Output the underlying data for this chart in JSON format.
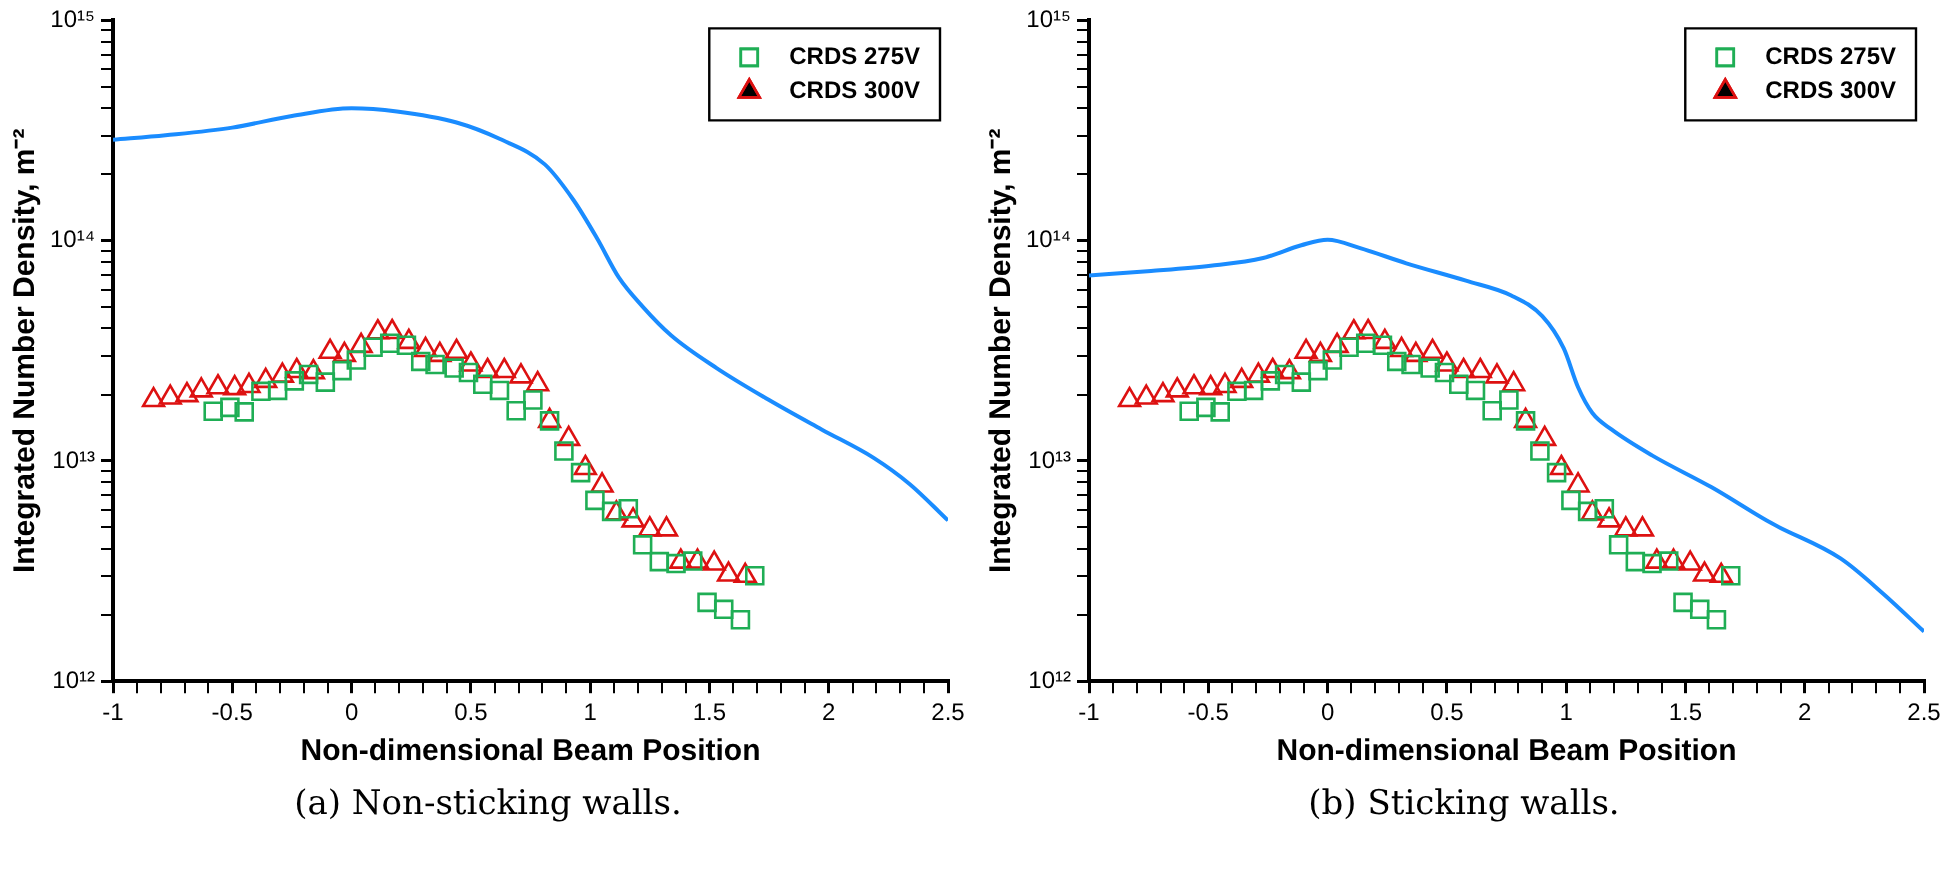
{
  "chart_data": [
    {
      "type": "scatter",
      "xlabel": "Non-dimensional Beam Position",
      "ylabel": "Integrated Number Density, m⁻²",
      "annotations": [
        "(a) Non-sticking walls."
      ],
      "log": "y",
      "legend": "top right",
      "grid": false,
      "xlim": [
        -1,
        2.5
      ],
      "ylim": [
        1000000000000.0,
        1000000000000000.0
      ],
      "xticks": [
        -1,
        {
          "value": -0.9,
          "label": null
        },
        {
          "value": -0.8,
          "label": null
        },
        {
          "value": -0.7,
          "label": null
        },
        {
          "value": -0.6,
          "label": null
        },
        -0.5,
        {
          "value": -0.4,
          "label": null
        },
        {
          "value": -0.3,
          "label": null
        },
        {
          "value": -0.2,
          "label": null
        },
        {
          "value": -0.1,
          "label": null
        },
        0,
        {
          "value": 0.1,
          "label": null
        },
        {
          "value": 0.2,
          "label": null
        },
        {
          "value": 0.3,
          "label": null
        },
        {
          "value": 0.4,
          "label": null
        },
        0.5,
        {
          "value": 0.6,
          "label": null
        },
        {
          "value": 0.7,
          "label": null
        },
        {
          "value": 0.8,
          "label": null
        },
        {
          "value": 0.9,
          "label": null
        },
        1,
        {
          "value": 1.1,
          "label": null
        },
        {
          "value": 1.2,
          "label": null
        },
        {
          "value": 1.3,
          "label": null
        },
        {
          "value": 1.4,
          "label": null
        },
        1.5,
        {
          "value": 1.6,
          "label": null
        },
        {
          "value": 1.7,
          "label": null
        },
        {
          "value": 1.8,
          "label": null
        },
        {
          "value": 1.9,
          "label": null
        },
        2,
        {
          "value": 2.1,
          "label": null
        },
        {
          "value": 2.2,
          "label": null
        },
        {
          "value": 2.3,
          "label": null
        },
        {
          "value": 2.4,
          "label": null
        },
        2.5
      ],
      "yticks": [
        {
          "value": 1000000000000.0,
          "label": "10¹²"
        },
        {
          "value": 2000000000000.0,
          "label": null
        },
        {
          "value": 3000000000000.0,
          "label": null
        },
        {
          "value": 4000000000000.0,
          "label": null
        },
        {
          "value": 5000000000000.0,
          "label": null
        },
        {
          "value": 6000000000000.0,
          "label": null
        },
        {
          "value": 7000000000000.0,
          "label": null
        },
        {
          "value": 8000000000000.0,
          "label": null
        },
        {
          "value": 9000000000000.0,
          "label": null
        },
        {
          "value": 10000000000000.0,
          "label": "10¹³"
        },
        {
          "value": 20000000000000.0,
          "label": null
        },
        {
          "value": 30000000000000.0,
          "label": null
        },
        {
          "value": 40000000000000.0,
          "label": null
        },
        {
          "value": 50000000000000.0,
          "label": null
        },
        {
          "value": 60000000000000.0,
          "label": null
        },
        {
          "value": 70000000000000.0,
          "label": null
        },
        {
          "value": 80000000000000.0,
          "label": null
        },
        {
          "value": 90000000000000.0,
          "label": null
        },
        {
          "value": 100000000000000.0,
          "label": "10¹⁴"
        },
        {
          "value": 200000000000000.0,
          "label": null
        },
        {
          "value": 300000000000000.0,
          "label": null
        },
        {
          "value": 400000000000000.0,
          "label": null
        },
        {
          "value": 500000000000000.0,
          "label": null
        },
        {
          "value": 600000000000000.0,
          "label": null
        },
        {
          "value": 700000000000000.0,
          "label": null
        },
        {
          "value": 800000000000000.0,
          "label": null
        },
        {
          "value": 900000000000000.0,
          "label": null
        },
        {
          "value": 1000000000000000.0,
          "label": "10¹⁵"
        }
      ],
      "series": [
        {
          "type": "line",
          "color": "#1a8cff",
          "marker": "none",
          "line_style": "solid",
          "x": [
            -1,
            -0.78,
            -0.5,
            -0.25,
            0,
            0.19,
            0.44,
            0.62,
            0.81,
            0.93,
            1.03,
            1.12,
            1.22,
            1.34,
            1.53,
            1.75,
            1.97,
            2.19,
            2.34,
            2.5
          ],
          "values": [
            287000000000000.0,
            301000000000000.0,
            326000000000000.0,
            368000000000000.0,
            399000000000000.0,
            386000000000000.0,
            344000000000000.0,
            290000000000000.0,
            222000000000000.0,
            153000000000000.0,
            102000000000000.0,
            68100000000000.0,
            50200000000000.0,
            37100000000000.0,
            26400000000000.0,
            18900000000000.0,
            13900000000000.0,
            10300000000000.0,
            7840000000000.0,
            5370000000000.0
          ]
        },
        {
          "type": "scatter",
          "name": "CRDS 275V",
          "color": "#1fae55",
          "marker": "square",
          "x": [
            -0.58,
            -0.51,
            -0.45,
            -0.38,
            -0.31,
            -0.24,
            -0.18,
            -0.11,
            -0.04,
            0.02,
            0.09,
            0.16,
            0.23,
            0.29,
            0.35,
            0.43,
            0.49,
            0.55,
            0.62,
            0.69,
            0.76,
            0.83,
            0.89,
            0.96,
            1.02,
            1.09,
            1.16,
            1.22,
            1.29,
            1.36,
            1.43,
            1.49,
            1.56,
            1.63,
            1.69
          ],
          "values": [
            16800000000000.0,
            17500000000000.0,
            16700000000000.0,
            20700000000000.0,
            20900000000000.0,
            23100000000000.0,
            24700000000000.0,
            22800000000000.0,
            25700000000000.0,
            28700000000000.0,
            32800000000000.0,
            34200000000000.0,
            33500000000000.0,
            28300000000000.0,
            27400000000000.0,
            26400000000000.0,
            25200000000000.0,
            22300000000000.0,
            20900000000000.0,
            16900000000000.0,
            18900000000000.0,
            15200000000000.0,
            11100000000000.0,
            8850000000000.0,
            6620000000000.0,
            5900000000000.0,
            6070000000000.0,
            4160000000000.0,
            3490000000000.0,
            3420000000000.0,
            3510000000000.0,
            2280000000000.0,
            2120000000000.0,
            1900000000000.0,
            3010000000000.0
          ]
        },
        {
          "type": "scatter",
          "name": "CRDS 300V",
          "color": "#dd1111",
          "marker": "triangle",
          "x": [
            -0.83,
            -0.76,
            -0.69,
            -0.63,
            -0.56,
            -0.49,
            -0.43,
            -0.36,
            -0.29,
            -0.23,
            -0.16,
            -0.09,
            -0.03,
            0.04,
            0.11,
            0.17,
            0.24,
            0.31,
            0.37,
            0.44,
            0.5,
            0.57,
            0.64,
            0.71,
            0.78,
            0.83,
            0.91,
            0.98,
            1.05,
            1.11,
            1.18,
            1.25,
            1.32,
            1.38,
            1.45,
            1.52,
            1.58,
            1.65
          ],
          "values": [
            18900000000000.0,
            19400000000000.0,
            19900000000000.0,
            20900000000000.0,
            21600000000000.0,
            21400000000000.0,
            21900000000000.0,
            23100000000000.0,
            24400000000000.0,
            25600000000000.0,
            25300000000000.0,
            31300000000000.0,
            30300000000000.0,
            33300000000000.0,
            38400000000000.0,
            38500000000000.0,
            34700000000000.0,
            31900000000000.0,
            30300000000000.0,
            31300000000000.0,
            27400000000000.0,
            25600000000000.0,
            25600000000000.0,
            24200000000000.0,
            22300000000000.0,
            15200000000000.0,
            12600000000000.0,
            9290000000000.0,
            7740000000000.0,
            5780000000000.0,
            5370000000000.0,
            4890000000000.0,
            4890000000000.0,
            3490000000000.0,
            3490000000000.0,
            3420000000000.0,
            3050000000000.0,
            3010000000000.0
          ]
        }
      ]
    },
    {
      "type": "scatter",
      "xlabel": "Non-dimensional Beam Position",
      "ylabel": "Integrated Number Density, m⁻²",
      "annotations": [
        "(b) Sticking walls."
      ],
      "log": "y",
      "legend": "top right",
      "grid": false,
      "xlim": [
        -1,
        2.5
      ],
      "ylim": [
        1000000000000.0,
        1000000000000000.0
      ],
      "xticks": [
        -1,
        {
          "value": -0.9,
          "label": null
        },
        {
          "value": -0.8,
          "label": null
        },
        {
          "value": -0.7,
          "label": null
        },
        {
          "value": -0.6,
          "label": null
        },
        -0.5,
        {
          "value": -0.4,
          "label": null
        },
        {
          "value": -0.3,
          "label": null
        },
        {
          "value": -0.2,
          "label": null
        },
        {
          "value": -0.1,
          "label": null
        },
        0,
        {
          "value": 0.1,
          "label": null
        },
        {
          "value": 0.2,
          "label": null
        },
        {
          "value": 0.3,
          "label": null
        },
        {
          "value": 0.4,
          "label": null
        },
        0.5,
        {
          "value": 0.6,
          "label": null
        },
        {
          "value": 0.7,
          "label": null
        },
        {
          "value": 0.8,
          "label": null
        },
        {
          "value": 0.9,
          "label": null
        },
        1,
        {
          "value": 1.1,
          "label": null
        },
        {
          "value": 1.2,
          "label": null
        },
        {
          "value": 1.3,
          "label": null
        },
        {
          "value": 1.4,
          "label": null
        },
        1.5,
        {
          "value": 1.6,
          "label": null
        },
        {
          "value": 1.7,
          "label": null
        },
        {
          "value": 1.8,
          "label": null
        },
        {
          "value": 1.9,
          "label": null
        },
        2,
        {
          "value": 2.1,
          "label": null
        },
        {
          "value": 2.2,
          "label": null
        },
        {
          "value": 2.3,
          "label": null
        },
        {
          "value": 2.4,
          "label": null
        },
        2.5
      ],
      "yticks": [
        {
          "value": 1000000000000.0,
          "label": "10¹²"
        },
        {
          "value": 2000000000000.0,
          "label": null
        },
        {
          "value": 3000000000000.0,
          "label": null
        },
        {
          "value": 4000000000000.0,
          "label": null
        },
        {
          "value": 5000000000000.0,
          "label": null
        },
        {
          "value": 6000000000000.0,
          "label": null
        },
        {
          "value": 7000000000000.0,
          "label": null
        },
        {
          "value": 8000000000000.0,
          "label": null
        },
        {
          "value": 9000000000000.0,
          "label": null
        },
        {
          "value": 10000000000000.0,
          "label": "10¹³"
        },
        {
          "value": 20000000000000.0,
          "label": null
        },
        {
          "value": 30000000000000.0,
          "label": null
        },
        {
          "value": 40000000000000.0,
          "label": null
        },
        {
          "value": 50000000000000.0,
          "label": null
        },
        {
          "value": 60000000000000.0,
          "label": null
        },
        {
          "value": 70000000000000.0,
          "label": null
        },
        {
          "value": 80000000000000.0,
          "label": null
        },
        {
          "value": 90000000000000.0,
          "label": null
        },
        {
          "value": 100000000000000.0,
          "label": "10¹⁴"
        },
        {
          "value": 200000000000000.0,
          "label": null
        },
        {
          "value": 300000000000000.0,
          "label": null
        },
        {
          "value": 400000000000000.0,
          "label": null
        },
        {
          "value": 500000000000000.0,
          "label": null
        },
        {
          "value": 600000000000000.0,
          "label": null
        },
        {
          "value": 700000000000000.0,
          "label": null
        },
        {
          "value": 800000000000000.0,
          "label": null
        },
        {
          "value": 900000000000000.0,
          "label": null
        },
        {
          "value": 1000000000000000.0,
          "label": "10¹⁵"
        }
      ],
      "series": [
        {
          "type": "line",
          "color": "#1a8cff",
          "marker": "none",
          "line_style": "solid",
          "x": [
            -1,
            -0.74,
            -0.49,
            -0.27,
            -0.11,
            0,
            0.14,
            0.33,
            0.58,
            0.77,
            0.9,
            0.99,
            1.05,
            1.11,
            1.19,
            1.36,
            1.61,
            1.86,
            2.15,
            2.33,
            2.5
          ],
          "values": [
            69500000000000.0,
            72800000000000.0,
            76900000000000.0,
            83400000000000.0,
            95300000000000.0,
            101000000000000.0,
            92300000000000.0,
            78900000000000.0,
            65800000000000.0,
            56400000000000.0,
            45400000000000.0,
            32400000000000.0,
            21600000000000.0,
            16500000000000.0,
            13900000000000.0,
            10600000000000.0,
            7590000000000.0,
            5220000000000.0,
            3610000000000.0,
            2490000000000.0,
            1680000000000.0
          ]
        },
        {
          "type": "scatter",
          "name": "CRDS 275V",
          "color": "#1fae55",
          "marker": "square",
          "x": [
            -0.58,
            -0.51,
            -0.45,
            -0.38,
            -0.31,
            -0.24,
            -0.18,
            -0.11,
            -0.04,
            0.02,
            0.09,
            0.16,
            0.23,
            0.29,
            0.35,
            0.43,
            0.49,
            0.55,
            0.62,
            0.69,
            0.76,
            0.83,
            0.89,
            0.96,
            1.02,
            1.09,
            1.16,
            1.22,
            1.29,
            1.36,
            1.43,
            1.49,
            1.56,
            1.63,
            1.69
          ],
          "values": [
            16800000000000.0,
            17500000000000.0,
            16700000000000.0,
            20700000000000.0,
            20900000000000.0,
            23100000000000.0,
            24700000000000.0,
            22800000000000.0,
            25700000000000.0,
            28700000000000.0,
            32800000000000.0,
            34200000000000.0,
            33500000000000.0,
            28300000000000.0,
            27400000000000.0,
            26400000000000.0,
            25200000000000.0,
            22300000000000.0,
            20900000000000.0,
            16900000000000.0,
            18900000000000.0,
            15200000000000.0,
            11100000000000.0,
            8850000000000.0,
            6620000000000.0,
            5900000000000.0,
            6070000000000.0,
            4160000000000.0,
            3490000000000.0,
            3420000000000.0,
            3510000000000.0,
            2280000000000.0,
            2120000000000.0,
            1900000000000.0,
            3010000000000.0
          ]
        },
        {
          "type": "scatter",
          "name": "CRDS 300V",
          "color": "#dd1111",
          "marker": "triangle",
          "x": [
            -0.83,
            -0.76,
            -0.69,
            -0.63,
            -0.56,
            -0.49,
            -0.43,
            -0.36,
            -0.29,
            -0.23,
            -0.16,
            -0.09,
            -0.03,
            0.04,
            0.11,
            0.17,
            0.24,
            0.31,
            0.37,
            0.44,
            0.5,
            0.57,
            0.64,
            0.71,
            0.78,
            0.83,
            0.91,
            0.98,
            1.05,
            1.11,
            1.18,
            1.25,
            1.32,
            1.38,
            1.45,
            1.52,
            1.58,
            1.65
          ],
          "values": [
            18900000000000.0,
            19400000000000.0,
            19900000000000.0,
            20900000000000.0,
            21600000000000.0,
            21400000000000.0,
            21900000000000.0,
            23100000000000.0,
            24400000000000.0,
            25600000000000.0,
            25300000000000.0,
            31300000000000.0,
            30300000000000.0,
            33300000000000.0,
            38400000000000.0,
            38500000000000.0,
            34700000000000.0,
            31900000000000.0,
            30300000000000.0,
            31300000000000.0,
            27400000000000.0,
            25600000000000.0,
            25600000000000.0,
            24200000000000.0,
            22300000000000.0,
            15200000000000.0,
            12600000000000.0,
            9290000000000.0,
            7740000000000.0,
            5780000000000.0,
            5370000000000.0,
            4890000000000.0,
            4890000000000.0,
            3490000000000.0,
            3490000000000.0,
            3420000000000.0,
            3050000000000.0,
            3010000000000.0
          ]
        }
      ]
    }
  ]
}
